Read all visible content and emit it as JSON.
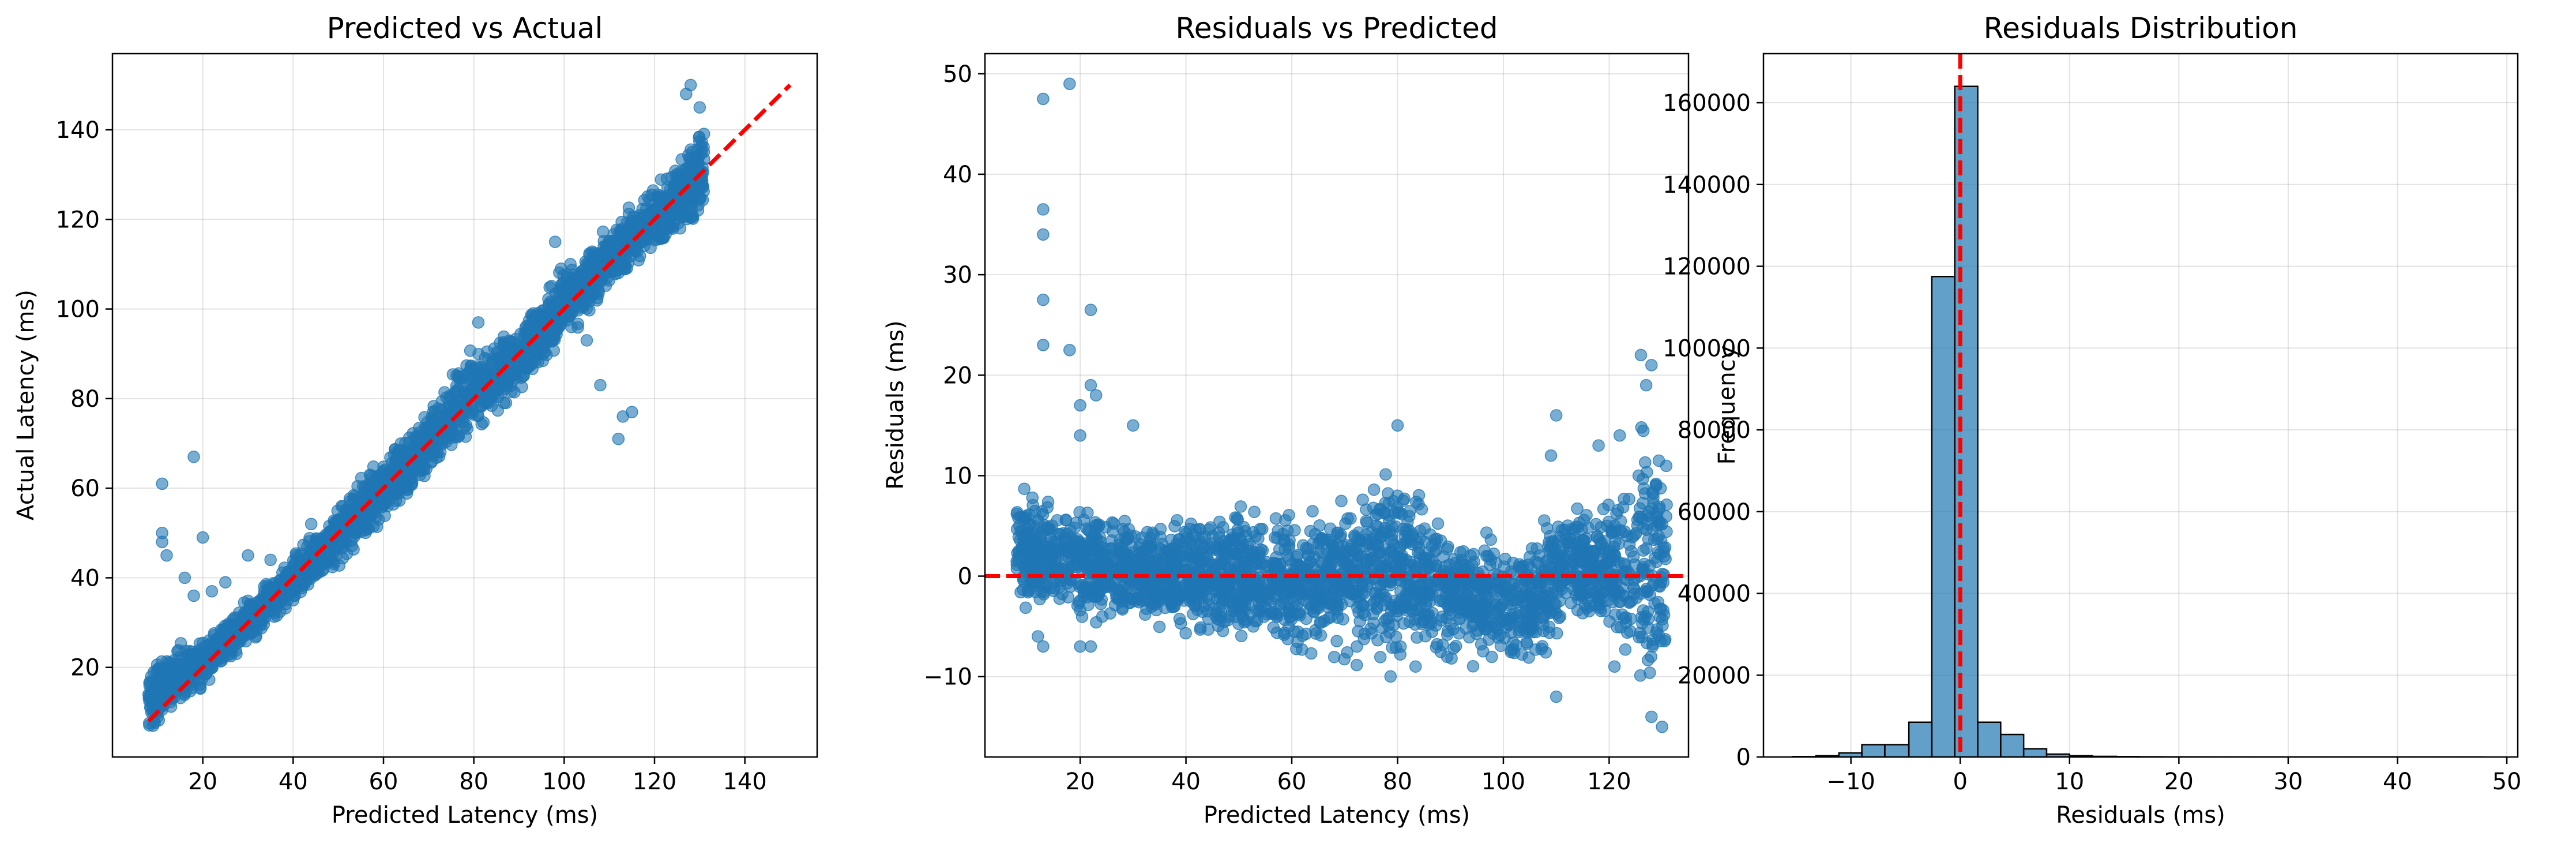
{
  "colors": {
    "points": "#1f77b4",
    "reference_line": "#ff0000",
    "hist_bars": "#1f77b4",
    "grid": "#b0b0b0"
  },
  "chart_data": [
    {
      "type": "scatter",
      "title": "Predicted vs Actual",
      "xlabel": "Predicted Latency (ms)",
      "ylabel": "Actual Latency (ms)",
      "xlim": [
        0,
        156
      ],
      "ylim": [
        0,
        157
      ],
      "xticks": [
        20,
        40,
        60,
        80,
        100,
        120,
        140
      ],
      "yticks": [
        20,
        40,
        60,
        80,
        100,
        120,
        140
      ],
      "grid": true,
      "reference_line": {
        "style": "dashed",
        "from": [
          8,
          8
        ],
        "to": [
          150,
          150
        ]
      },
      "dense_band": [
        [
          8,
          4,
          22
        ],
        [
          12,
          8,
          25
        ],
        [
          20,
          14,
          28
        ],
        [
          30,
          24,
          36
        ],
        [
          40,
          33,
          46
        ],
        [
          50,
          42,
          58
        ],
        [
          60,
          52,
          68
        ],
        [
          70,
          61,
          79
        ],
        [
          80,
          70,
          94
        ],
        [
          90,
          80,
          98
        ],
        [
          100,
          91,
          111
        ],
        [
          110,
          103,
          120
        ],
        [
          120,
          111,
          130
        ],
        [
          126,
          115,
          136
        ],
        [
          131,
          117,
          145
        ]
      ],
      "outliers": [
        [
          18,
          67
        ],
        [
          11,
          61
        ],
        [
          11,
          50
        ],
        [
          11,
          48
        ],
        [
          12,
          45
        ],
        [
          16,
          40
        ],
        [
          20,
          49
        ],
        [
          22,
          37
        ],
        [
          18,
          36
        ],
        [
          30,
          45
        ],
        [
          25,
          39
        ],
        [
          113,
          76
        ],
        [
          115,
          77
        ],
        [
          112,
          71
        ],
        [
          108,
          83
        ],
        [
          105,
          93
        ],
        [
          98,
          115
        ],
        [
          101,
          103
        ],
        [
          128,
          150
        ],
        [
          130,
          145
        ],
        [
          127,
          148
        ],
        [
          81,
          97
        ],
        [
          57,
          63
        ],
        [
          44,
          52
        ],
        [
          35,
          44
        ],
        [
          9,
          7
        ],
        [
          10,
          9
        ]
      ]
    },
    {
      "type": "scatter",
      "title": "Residuals vs Predicted",
      "xlabel": "Predicted Latency (ms)",
      "ylabel": "Residuals (ms)",
      "xlim": [
        2,
        135
      ],
      "ylim": [
        -18,
        52
      ],
      "xticks": [
        20,
        40,
        60,
        80,
        100,
        120
      ],
      "yticks": [
        -10,
        0,
        10,
        20,
        30,
        40,
        50
      ],
      "grid": true,
      "reference_line": {
        "style": "dashed",
        "y": 0
      },
      "dense_band": [
        [
          8,
          -4,
          10
        ],
        [
          15,
          -5,
          8
        ],
        [
          20,
          -6,
          8
        ],
        [
          30,
          -6,
          7
        ],
        [
          40,
          -7,
          7
        ],
        [
          50,
          -8,
          8
        ],
        [
          60,
          -9,
          8
        ],
        [
          70,
          -10,
          9
        ],
        [
          80,
          -11,
          13
        ],
        [
          90,
          -9,
          6
        ],
        [
          100,
          -10,
          5
        ],
        [
          108,
          -11,
          8
        ],
        [
          112,
          -5,
          8
        ],
        [
          120,
          -7,
          8
        ],
        [
          126,
          -14,
          18
        ],
        [
          131,
          -15,
          17
        ]
      ],
      "outliers": [
        [
          18,
          49
        ],
        [
          13,
          47.5
        ],
        [
          13,
          36.5
        ],
        [
          13,
          34
        ],
        [
          13,
          27.5
        ],
        [
          22,
          26.5
        ],
        [
          13,
          23
        ],
        [
          18,
          22.5
        ],
        [
          22,
          19
        ],
        [
          20,
          17
        ],
        [
          23,
          18
        ],
        [
          30,
          15
        ],
        [
          20,
          14
        ],
        [
          126,
          22
        ],
        [
          128,
          21
        ],
        [
          127,
          19
        ],
        [
          110,
          16
        ],
        [
          109,
          12
        ],
        [
          122,
          14
        ],
        [
          118,
          13
        ],
        [
          80,
          15
        ],
        [
          13,
          -7
        ],
        [
          22,
          -7
        ],
        [
          110,
          -12
        ],
        [
          121,
          -9
        ],
        [
          130,
          -15
        ],
        [
          128,
          -14
        ],
        [
          12,
          -6
        ],
        [
          20,
          -7
        ]
      ]
    },
    {
      "type": "bar",
      "title": "Residuals Distribution",
      "xlabel": "Residuals (ms)",
      "ylabel": "Frequency",
      "xlim": [
        -18,
        51
      ],
      "ylim": [
        0,
        172000
      ],
      "xticks": [
        -10,
        0,
        10,
        20,
        30,
        40,
        50
      ],
      "yticks": [
        0,
        20000,
        40000,
        60000,
        80000,
        100000,
        120000,
        140000,
        160000
      ],
      "grid": true,
      "reference_line": {
        "style": "dashed",
        "x": 0
      },
      "bin_edges": [
        -15.3,
        -13.2,
        -11.1,
        -9.0,
        -6.9,
        -4.7,
        -2.6,
        -0.5,
        1.6,
        3.7,
        5.8,
        7.9,
        10.0,
        12.1,
        14.3,
        16.4,
        18.5,
        20.6,
        22.7,
        24.8,
        26.9,
        29.0,
        31.1,
        33.2,
        35.3,
        37.4,
        39.5,
        41.6,
        43.7,
        45.8,
        47.9
      ],
      "values": [
        100,
        300,
        1000,
        3000,
        3000,
        8500,
        117500,
        164000,
        8500,
        5500,
        2000,
        700,
        300,
        150,
        100,
        60,
        40,
        30,
        20,
        15,
        10,
        8,
        6,
        5,
        4,
        3,
        3,
        2,
        2,
        2
      ]
    }
  ]
}
